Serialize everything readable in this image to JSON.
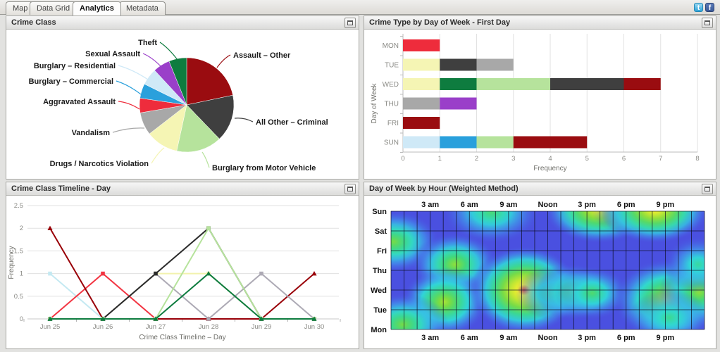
{
  "tabs": {
    "items": [
      {
        "label": "Map",
        "active": false
      },
      {
        "label": "Data Grid",
        "active": false
      },
      {
        "label": "Analytics",
        "active": true
      },
      {
        "label": "Metadata",
        "active": false
      }
    ]
  },
  "social": {
    "twitter_label": "t",
    "facebook_label": "f"
  },
  "panels": {
    "pie": {
      "title": "Crime Class"
    },
    "bar": {
      "title": "Crime Type by Day of Week - First Day"
    },
    "line": {
      "title": "Crime Class Timeline - Day"
    },
    "heat": {
      "title": "Day of Week by Hour (Weighted Method)"
    }
  },
  "chart_data": [
    {
      "id": "pie",
      "type": "pie",
      "title": "Crime Class",
      "slices": [
        {
          "label": "Assault – Other",
          "pct": 21.7,
          "color": "#9a0c10"
        },
        {
          "label": "All Other – Criminal",
          "pct": 16.1,
          "color": "#3f3f3f"
        },
        {
          "label": "Burglary from Motor Vehicle",
          "pct": 15.6,
          "color": "#b6e39c"
        },
        {
          "label": "Drugs / Narcotics Violation",
          "pct": 11.1,
          "color": "#f5f5b4"
        },
        {
          "label": "Vandalism",
          "pct": 7.8,
          "color": "#a8a8a8"
        },
        {
          "label": "Aggravated Assault",
          "pct": 5.0,
          "color": "#ee2c3c"
        },
        {
          "label": "Burglary – Commercial",
          "pct": 5.0,
          "color": "#2aa0dc"
        },
        {
          "label": "Burglary – Residential",
          "pct": 5.8,
          "color": "#cfe9f7"
        },
        {
          "label": "Sexual Assault",
          "pct": 5.8,
          "color": "#9a3fc9"
        },
        {
          "label": "Theft",
          "pct": 6.1,
          "color": "#0e7c3f"
        }
      ]
    },
    {
      "id": "bar",
      "type": "bar",
      "stacked": true,
      "horizontal": true,
      "title": "Crime Type by Day of Week - First Day",
      "xlabel": "Frequency",
      "ylabel": "Day of Week",
      "xlim": [
        0,
        8
      ],
      "xticks": [
        0,
        1,
        2,
        3,
        4,
        5,
        6,
        7,
        8
      ],
      "categories": [
        "MON",
        "TUE",
        "WED",
        "THU",
        "FRI",
        "SUN"
      ],
      "series": [
        {
          "name": "Aggravated Assault",
          "color": "#ee2c3c",
          "values": [
            1,
            0,
            0,
            0,
            0,
            0
          ]
        },
        {
          "name": "Drugs / Narcotics Violation",
          "color": "#f5f5b4",
          "values": [
            0,
            1,
            1,
            0,
            0,
            0
          ]
        },
        {
          "name": "Theft",
          "color": "#0e7c3f",
          "values": [
            0,
            0,
            1,
            0,
            0,
            0
          ]
        },
        {
          "name": "Burglary – Residential",
          "color": "#cfe9f7",
          "values": [
            0,
            0,
            0,
            0,
            0,
            1
          ]
        },
        {
          "name": "Burglary – Commercial",
          "color": "#2aa0dc",
          "values": [
            0,
            0,
            0,
            0,
            0,
            1
          ]
        },
        {
          "name": "Burglary from Motor Vehicle",
          "color": "#b6e39c",
          "values": [
            0,
            0,
            2,
            0,
            0,
            1
          ]
        },
        {
          "name": "All Other – Criminal",
          "color": "#3f3f3f",
          "values": [
            0,
            1,
            2,
            0,
            0,
            0
          ]
        },
        {
          "name": "Vandalism",
          "color": "#a8a8a8",
          "values": [
            0,
            1,
            0,
            1,
            0,
            0
          ]
        },
        {
          "name": "Sexual Assault",
          "color": "#9a3fc9",
          "values": [
            0,
            0,
            0,
            1,
            0,
            0
          ]
        },
        {
          "name": "Assault – Other",
          "color": "#9a0c10",
          "values": [
            0,
            0,
            1,
            0,
            1,
            2
          ]
        }
      ]
    },
    {
      "id": "line",
      "type": "line",
      "title": "Crime Class Timeline - Day",
      "xlabel": "Crime Class Timeline – Day",
      "ylabel": "Frequency",
      "ylim": [
        0,
        2.5
      ],
      "yticks": [
        0,
        0.5,
        1,
        1.5,
        2,
        2.5
      ],
      "categories": [
        "Jun 25",
        "Jun 26",
        "Jun 27",
        "Jun 28",
        "Jun 29",
        "Jun 30"
      ],
      "series": [
        {
          "name": "Drugs / Narcotics Violation",
          "color": "#f2f2ae",
          "marker": "square",
          "values": [
            0,
            0,
            1,
            1,
            0,
            0
          ]
        },
        {
          "name": "Burglary – Residential",
          "color": "#c4e9f2",
          "marker": "square",
          "values": [
            1,
            0,
            0,
            0,
            0,
            0
          ]
        },
        {
          "name": "Burglary – Commercial",
          "color": "#bfe8da",
          "marker": "square",
          "values": [
            0,
            0,
            0,
            0,
            0,
            0
          ]
        },
        {
          "name": "Aggravated Assault",
          "color": "#f23542",
          "marker": "square",
          "values": [
            0,
            1,
            0,
            0,
            0,
            0
          ]
        },
        {
          "name": "Assault – Other",
          "color": "#990008",
          "marker": "triangle",
          "values": [
            2,
            0,
            0,
            0,
            0,
            1
          ]
        },
        {
          "name": "Vandalism",
          "color": "#adaab5",
          "marker": "square",
          "values": [
            0,
            0,
            1,
            0,
            1,
            0
          ]
        },
        {
          "name": "All Other – Criminal",
          "color": "#2b2b2b",
          "marker": "square",
          "values": [
            0,
            0,
            1,
            2,
            0,
            0
          ]
        },
        {
          "name": "Burglary from Motor Vehicle",
          "color": "#b6e39c",
          "marker": "square",
          "values": [
            0,
            0,
            0,
            2,
            0,
            0
          ]
        },
        {
          "name": "Theft",
          "color": "#0e7c3f",
          "marker": "triangle",
          "values": [
            0,
            0,
            0,
            1,
            0,
            0
          ]
        }
      ]
    },
    {
      "id": "heat",
      "type": "heatmap",
      "title": "Day of Week by Hour (Weighted Method)",
      "hours": 24,
      "x_tick_labels": [
        "3 am",
        "6 am",
        "9 am",
        "Noon",
        "3 pm",
        "6 pm",
        "9 pm"
      ],
      "x_tick_hours": [
        3,
        6,
        9,
        12,
        15,
        18,
        21
      ],
      "y_labels": [
        "Sun",
        "Sat",
        "Fri",
        "Thu",
        "Wed",
        "Tue",
        "Mon"
      ],
      "base_color": "#4a50e0",
      "hotspots": [
        {
          "hour": 7.7,
          "day": 0.05,
          "intensity": 0.5,
          "rx": 1.7,
          "ry": 1.0
        },
        {
          "hour": 15.9,
          "day": -0.05,
          "intensity": 0.85,
          "rx": 1.9,
          "ry": 1.05
        },
        {
          "hour": 18.0,
          "day": 0.0,
          "intensity": 0.33,
          "rx": 1.2,
          "ry": 0.7
        },
        {
          "hour": 20.2,
          "day": -0.05,
          "intensity": 0.88,
          "rx": 1.9,
          "ry": 1.05
        },
        {
          "hour": 0.2,
          "day": 1.55,
          "intensity": 0.6,
          "rx": 1.6,
          "ry": 1.0
        },
        {
          "hour": 4.9,
          "day": 2.7,
          "intensity": 0.65,
          "rx": 1.5,
          "ry": 1.0
        },
        {
          "hour": 4.1,
          "day": 4.6,
          "intensity": 0.7,
          "rx": 1.5,
          "ry": 1.1
        },
        {
          "hour": 0.9,
          "day": 5.75,
          "intensity": 0.6,
          "rx": 1.6,
          "ry": 1.0
        },
        {
          "hour": 10.2,
          "day": 4.0,
          "intensity": 1.0,
          "rx": 1.9,
          "ry": 1.4
        },
        {
          "hour": 12.4,
          "day": 4.15,
          "intensity": 0.52,
          "rx": 1.3,
          "ry": 0.85
        },
        {
          "hour": 13.9,
          "day": 4.1,
          "intensity": 0.56,
          "rx": 1.3,
          "ry": 0.9
        },
        {
          "hour": 15.4,
          "day": 4.15,
          "intensity": 0.52,
          "rx": 1.3,
          "ry": 0.85
        },
        {
          "hour": 21.2,
          "day": 4.5,
          "intensity": 0.75,
          "rx": 1.9,
          "ry": 1.3
        },
        {
          "hour": 23.6,
          "day": 4.1,
          "intensity": 0.65,
          "rx": 1.4,
          "ry": 1.1
        },
        {
          "hour": 23.5,
          "day": 2.7,
          "intensity": 0.42,
          "rx": 1.2,
          "ry": 0.9
        },
        {
          "hour": 21.3,
          "day": 5.4,
          "intensity": 0.45,
          "rx": 1.4,
          "ry": 0.9
        }
      ]
    }
  ]
}
